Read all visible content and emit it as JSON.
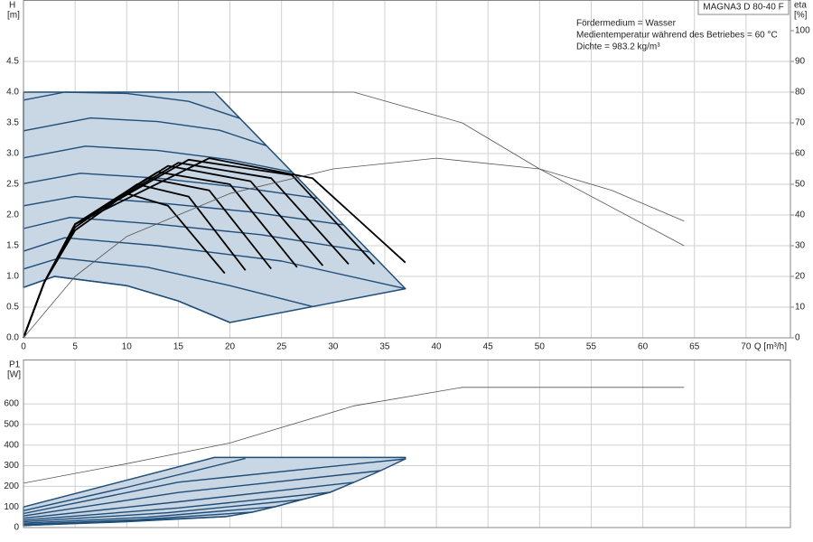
{
  "chart_data": [
    {
      "type": "line",
      "model": "MAGNA3 D 80-40 F",
      "notes": [
        "Fördermedium = Wasser",
        "Medientemperatur während des Betriebes = 60 °C",
        "Dichte = 983.2 kg/m³"
      ],
      "ylabel": "H",
      "yunit": "[m]",
      "y2label": "eta",
      "y2unit": "[%]",
      "xlabel": "Q [m³/h]",
      "xlim": [
        0,
        74.3
      ],
      "xticks": [
        0,
        5,
        10,
        15,
        20,
        25,
        30,
        35,
        40,
        45,
        50,
        55,
        60,
        65,
        70
      ],
      "ylim": [
        0,
        5.5
      ],
      "yticks": [
        {
          "value": 0,
          "label": "0.0"
        },
        0.5,
        {
          "value": 1,
          "label": "1.0"
        },
        1.5,
        {
          "value": 2,
          "label": "2.0"
        },
        2.5,
        {
          "value": 3,
          "label": "3.0"
        },
        3.5,
        {
          "value": 4,
          "label": "4.0"
        },
        4.5
      ],
      "y2lim": [
        0,
        110
      ],
      "y2ticks": [
        0,
        10,
        20,
        30,
        40,
        50,
        60,
        70,
        80,
        90,
        100
      ],
      "grid": true,
      "series": [
        {
          "kind": "region",
          "color": "#1f4e79",
          "fill": "#c9d6e3",
          "x": [
            0,
            18.5,
            37,
            20,
            15,
            10,
            3,
            0
          ],
          "values": [
            4.0,
            4.0,
            0.8,
            0.25,
            0.6,
            0.85,
            1.0,
            0.82
          ]
        },
        {
          "color": "#1f4e79",
          "x": [
            0,
            4,
            10,
            16,
            21
          ],
          "values": [
            3.87,
            4.0,
            3.98,
            3.85,
            3.57
          ]
        },
        {
          "color": "#1f4e79",
          "x": [
            0,
            6.5,
            13,
            19,
            23.5
          ],
          "values": [
            3.37,
            3.58,
            3.52,
            3.38,
            3.13
          ]
        },
        {
          "color": "#1f4e79",
          "x": [
            0,
            6,
            13,
            20,
            26
          ],
          "values": [
            2.93,
            3.12,
            3.05,
            2.9,
            2.7
          ]
        },
        {
          "color": "#1f4e79",
          "x": [
            0,
            5.5,
            13,
            21,
            28.5
          ],
          "values": [
            2.51,
            2.68,
            2.6,
            2.45,
            2.27
          ]
        },
        {
          "color": "#1f4e79",
          "x": [
            0,
            5,
            13,
            22,
            31
          ],
          "values": [
            2.15,
            2.3,
            2.2,
            2.05,
            1.84
          ]
        },
        {
          "color": "#1f4e79",
          "x": [
            0,
            4.5,
            13,
            23,
            33.5
          ],
          "values": [
            1.78,
            1.96,
            1.85,
            1.68,
            1.4
          ]
        },
        {
          "color": "#1f4e79",
          "x": [
            0,
            4,
            13,
            25,
            37
          ],
          "values": [
            1.41,
            1.63,
            1.5,
            1.25,
            0.8
          ]
        },
        {
          "color": "#1f4e79",
          "x": [
            0,
            3.5,
            12,
            20,
            28
          ],
          "values": [
            1.12,
            1.3,
            1.15,
            0.85,
            0.51
          ]
        },
        {
          "color": "#1f4e79",
          "x": [
            0,
            3,
            10,
            15,
            20
          ],
          "values": [
            0.82,
            1.0,
            0.85,
            0.6,
            0.25
          ]
        },
        {
          "color": "#000000",
          "axis": "y2",
          "x": [
            0,
            2,
            5,
            10,
            14,
            19.5
          ],
          "values": [
            0,
            18,
            35,
            47,
            43,
            21
          ]
        },
        {
          "color": "#000000",
          "axis": "y2",
          "x": [
            0,
            2,
            5,
            11,
            16,
            21.5
          ],
          "values": [
            0,
            18,
            36,
            50,
            46,
            22
          ]
        },
        {
          "color": "#000000",
          "axis": "y2",
          "x": [
            0,
            2,
            5,
            12,
            18,
            24
          ],
          "values": [
            0,
            18,
            37,
            52,
            48,
            22.5
          ]
        },
        {
          "color": "#000000",
          "axis": "y2",
          "x": [
            0,
            2,
            5,
            13,
            20,
            26.5
          ],
          "values": [
            0,
            18,
            37,
            54,
            50,
            23
          ]
        },
        {
          "color": "#000000",
          "axis": "y2",
          "x": [
            0,
            2,
            5,
            14,
            22,
            29
          ],
          "values": [
            0,
            18,
            37,
            56,
            51,
            23.5
          ]
        },
        {
          "color": "#000000",
          "axis": "y2",
          "x": [
            0,
            2,
            5,
            15,
            24,
            31.5
          ],
          "values": [
            0,
            18,
            37,
            57,
            52,
            24
          ]
        },
        {
          "color": "#000000",
          "axis": "y2",
          "x": [
            0,
            2,
            5,
            16,
            26,
            34
          ],
          "values": [
            0,
            18,
            37,
            58,
            53,
            24
          ]
        },
        {
          "color": "#000000",
          "axis": "y2",
          "x": [
            0,
            2,
            5,
            18,
            28,
            37
          ],
          "values": [
            0,
            18,
            37,
            58.5,
            52,
            24.5
          ]
        },
        {
          "kind": "thin",
          "color": "#555555",
          "x": [
            18.5,
            32,
            42.5,
            50,
            64
          ],
          "values": [
            4.0,
            4.0,
            3.5,
            2.75,
            1.5
          ]
        },
        {
          "kind": "thin",
          "color": "#555555",
          "axis": "y2",
          "x": [
            0,
            5,
            10,
            20,
            30,
            40,
            50,
            57,
            64
          ],
          "values": [
            0,
            20,
            33,
            47,
            55,
            58.5,
            55,
            48,
            38
          ]
        }
      ]
    },
    {
      "type": "line",
      "ylabel": "P1",
      "yunit": "[W]",
      "xlim": [
        0,
        74.3
      ],
      "xticks": [
        0,
        5,
        10,
        15,
        20,
        25,
        30,
        35,
        40,
        45,
        50,
        55,
        60,
        65,
        70
      ],
      "ylim": [
        0,
        815
      ],
      "yticks": [
        0,
        100,
        200,
        300,
        400,
        500,
        600
      ],
      "grid": true,
      "series": [
        {
          "kind": "region",
          "color": "#1f4e79",
          "fill": "#c9d6e3",
          "x": [
            0,
            18.5,
            37,
            37,
            34.6,
            32,
            29.7,
            27,
            24.4,
            22.2,
            19.6,
            0
          ],
          "values": [
            100,
            340,
            340,
            333,
            276,
            219,
            171,
            136,
            101,
            75,
            53,
            10
          ]
        },
        {
          "color": "#1f4e79",
          "x": [
            0,
            10,
            21.5
          ],
          "values": [
            82,
            195,
            335
          ]
        },
        {
          "color": "#1f4e79",
          "x": [
            0,
            15,
            37
          ],
          "values": [
            68,
            220,
            333
          ]
        },
        {
          "color": "#1f4e79",
          "x": [
            0,
            15,
            34.6
          ],
          "values": [
            56,
            170,
            276
          ]
        },
        {
          "color": "#1f4e79",
          "x": [
            0,
            15,
            32
          ],
          "values": [
            45,
            125,
            219
          ]
        },
        {
          "color": "#1f4e79",
          "x": [
            0,
            15,
            29.7
          ],
          "values": [
            36,
            95,
            171
          ]
        },
        {
          "color": "#1f4e79",
          "x": [
            0,
            14,
            27
          ],
          "values": [
            28,
            72,
            136
          ]
        },
        {
          "color": "#1f4e79",
          "x": [
            0,
            12,
            24.4
          ],
          "values": [
            21,
            50,
            101
          ]
        },
        {
          "color": "#1f4e79",
          "x": [
            0,
            11,
            22.2
          ],
          "values": [
            15,
            38,
            75
          ]
        },
        {
          "color": "#1f4e79",
          "x": [
            0,
            10,
            19.6
          ],
          "values": [
            10,
            28,
            53
          ]
        },
        {
          "kind": "thin",
          "color": "#555555",
          "x": [
            0,
            10,
            20,
            32,
            42.5,
            64
          ],
          "values": [
            215,
            310,
            410,
            590,
            680,
            680
          ]
        }
      ]
    }
  ]
}
